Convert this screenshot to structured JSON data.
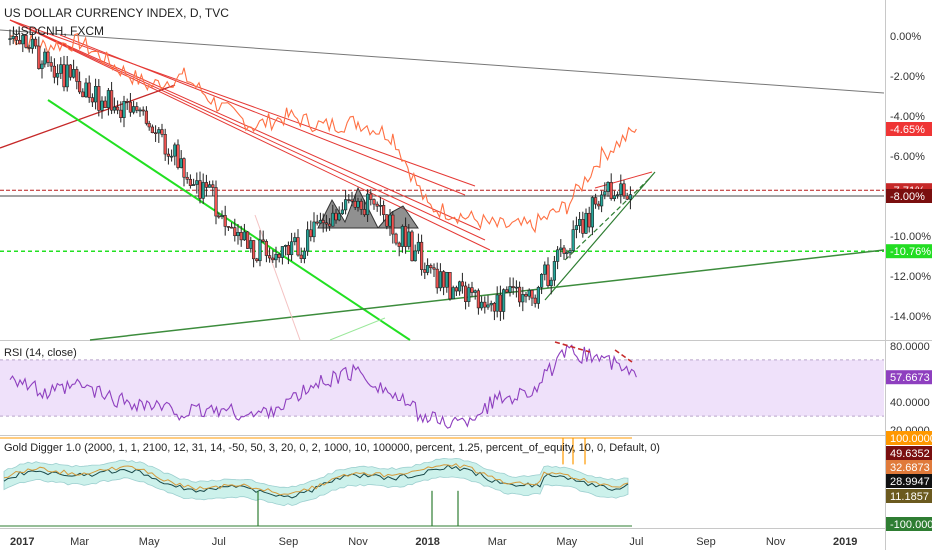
{
  "header": {
    "main_title": "US DOLLAR CURRENCY INDEX, D, TVC",
    "compare_symbol": "USDCNH, FXCM",
    "rsi_title": "RSI (14, close)",
    "indicator_title": "Gold Digger 1.0 (2000, 1, 1, 2100, 12, 31, 14, -50, 50, 3, 20, 0, 2, 1000, 10, 100000, percent, 1.25, percent_of_equity, 10, 0, Default, 0)"
  },
  "colors": {
    "candle_up": "#26a69a",
    "candle_down": "#ef5350",
    "candle_body": "#222222",
    "compare_line": "#ff7043",
    "red_lines": "#e53935",
    "green_line": "#4caf50",
    "bright_green": "#22e022",
    "rsi_line": "#8e3fbf",
    "rsi_band": "#efe1fa",
    "trend_gray": "#777777"
  },
  "chart_data": [
    {
      "type": "candlestick",
      "title": "US DOLLAR CURRENCY INDEX, D, TVC",
      "y_unit": "percent",
      "y_ticks": [
        "0.00%",
        "-2.00%",
        "-4.00%",
        "-6.00%",
        "-8.00%",
        "-10.00%",
        "-12.00%",
        "-14.00%"
      ],
      "ylim": [
        -15,
        1.6
      ],
      "x_ticks": [
        "2017",
        "Mar",
        "May",
        "Jul",
        "Sep",
        "Nov",
        "2018",
        "Mar",
        "May",
        "Jul",
        "Sep",
        "Nov",
        "2019"
      ],
      "series": [
        {
          "name": "US DOLLAR CURRENCY INDEX",
          "dates": [
            "2017-01",
            "2017-02",
            "2017-03",
            "2017-04",
            "2017-05",
            "2017-06",
            "2017-07",
            "2017-08",
            "2017-09",
            "2017-10",
            "2017-11",
            "2017-12",
            "2018-01",
            "2018-02",
            "2018-03",
            "2018-04",
            "2018-05",
            "2018-06",
            "2018-07"
          ],
          "values": [
            0.5,
            -1.5,
            -2.5,
            -3.5,
            -4.5,
            -6.5,
            -8.5,
            -10.5,
            -11.0,
            -9.5,
            -8.0,
            -9.5,
            -11.5,
            -13.0,
            -13.2,
            -13.0,
            -10.5,
            -8.0,
            -8.0
          ]
        },
        {
          "name": "USDCNH, FXCM",
          "dates": [
            "2017-01",
            "2017-02",
            "2017-03",
            "2017-04",
            "2017-05",
            "2017-06",
            "2017-07",
            "2017-08",
            "2017-09",
            "2017-10",
            "2017-11",
            "2017-12",
            "2018-01",
            "2018-02",
            "2018-03",
            "2018-04",
            "2018-05",
            "2018-06",
            "2018-07"
          ],
          "values": [
            0.0,
            -0.5,
            -0.3,
            -1.5,
            -2.5,
            -2.0,
            -3.5,
            -4.5,
            -4.0,
            -4.5,
            -4.3,
            -5.0,
            -8.5,
            -9.0,
            -9.5,
            -9.5,
            -8.5,
            -6.0,
            -4.65
          ]
        }
      ],
      "price_badges": [
        "-4.65%",
        "-7.71%",
        "-8.00%",
        "-10.76%"
      ]
    },
    {
      "type": "line",
      "title": "RSI (14, close)",
      "y_ticks": [
        "80.0000",
        "40.0000",
        "20.0000"
      ],
      "ylim": [
        18,
        82
      ],
      "band": [
        30,
        70
      ],
      "current_value_label": "57.6673",
      "series": [
        {
          "name": "RSI (14, close)",
          "dates": [
            "2017-01",
            "2017-02",
            "2017-03",
            "2017-04",
            "2017-05",
            "2017-06",
            "2017-07",
            "2017-08",
            "2017-09",
            "2017-10",
            "2017-11",
            "2017-12",
            "2018-01",
            "2018-02",
            "2018-03",
            "2018-04",
            "2018-05",
            "2018-06",
            "2018-07"
          ],
          "values": [
            60,
            45,
            52,
            42,
            38,
            32,
            35,
            30,
            40,
            55,
            62,
            45,
            28,
            25,
            42,
            48,
            75,
            72,
            57.7
          ]
        }
      ]
    },
    {
      "type": "line",
      "title": "Gold Digger 1.0",
      "y_ticks": [
        "100.0000",
        "49.6352",
        "32.6873",
        "28.9947",
        "11.1857",
        "-100.0000"
      ],
      "ylim": [
        -100,
        100
      ]
    }
  ]
}
